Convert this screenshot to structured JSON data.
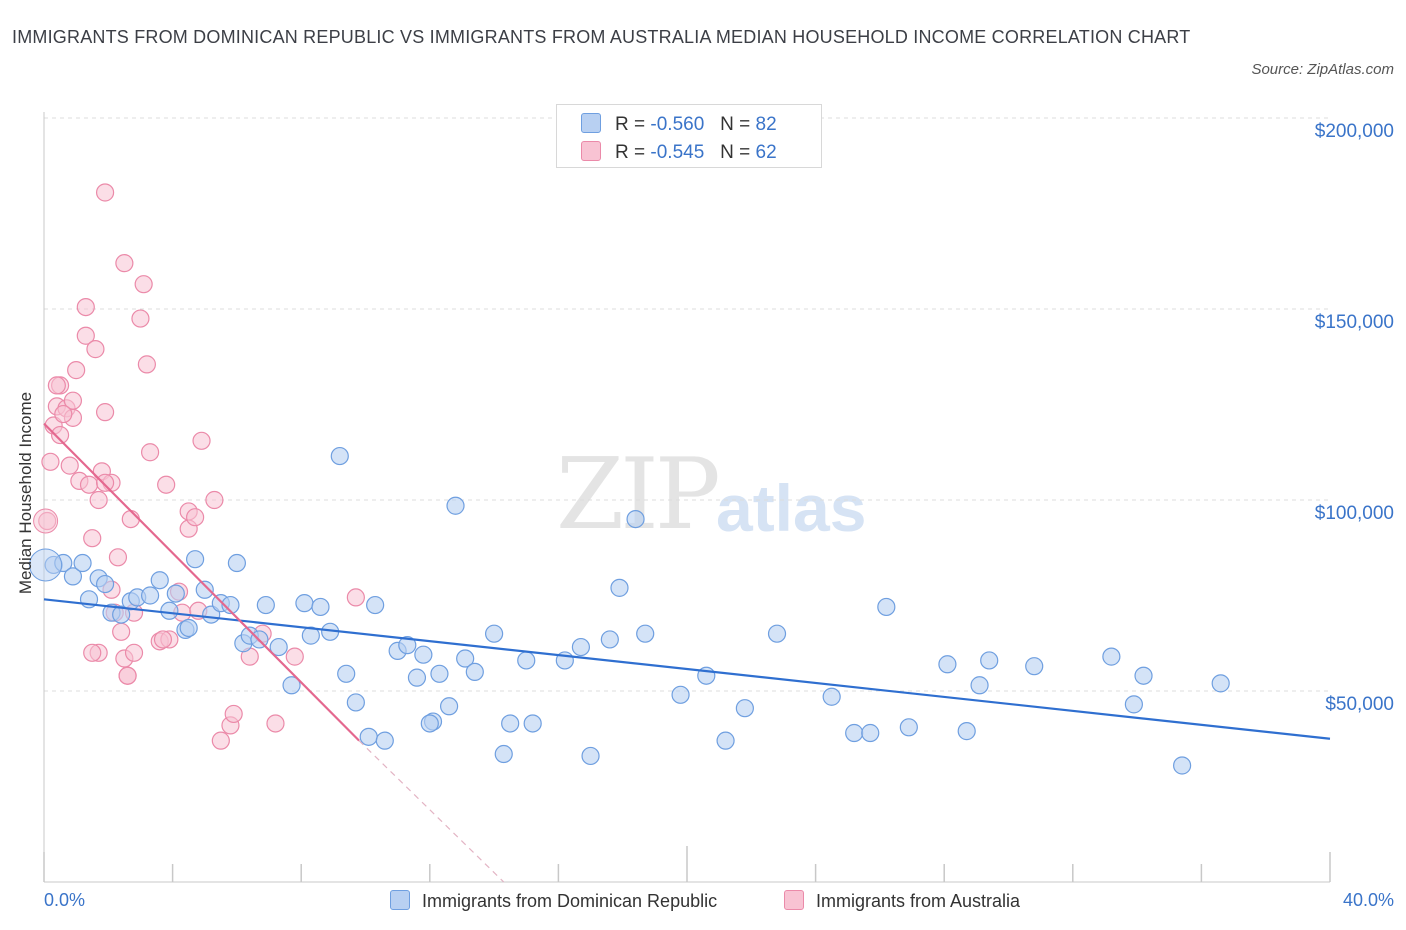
{
  "header": {
    "title": "IMMIGRANTS FROM DOMINICAN REPUBLIC VS IMMIGRANTS FROM AUSTRALIA MEDIAN HOUSEHOLD INCOME CORRELATION CHART",
    "source": "Source: ZipAtlas.com"
  },
  "watermark": {
    "zip": "ZIP",
    "atlas": "atlas"
  },
  "legend": {
    "series1": {
      "r_label": "R =",
      "r_value": "-0.560",
      "n_label": "N =",
      "n_value": "82"
    },
    "series2": {
      "r_label": "R =",
      "r_value": "-0.545",
      "n_label": "N =",
      "n_value": "62"
    }
  },
  "colors": {
    "blue_fill": "#b8d0f2",
    "blue_stroke": "#6f9fe0",
    "blue_line": "#2f6fd0",
    "pink_fill": "#f8c3d3",
    "pink_stroke": "#eb8aa9",
    "pink_line": "#e4688f",
    "grid": "#dcdcdc",
    "tick_text": "#3a74c9"
  },
  "chart_data": {
    "type": "scatter",
    "title": "IMMIGRANTS FROM DOMINICAN REPUBLIC VS IMMIGRANTS FROM AUSTRALIA MEDIAN HOUSEHOLD INCOME CORRELATION CHART",
    "xlabel": "",
    "ylabel": "Median Household Income",
    "xlim": [
      0,
      40
    ],
    "ylim": [
      0,
      200000
    ],
    "x_tick_labels": [
      "0.0%",
      "40.0%"
    ],
    "y_tick_labels": [
      "$50,000",
      "$100,000",
      "$150,000",
      "$200,000"
    ],
    "y_tick_values": [
      50000,
      100000,
      150000,
      200000
    ],
    "grid": "horizontal dashed",
    "legend_position": "bottom",
    "series": [
      {
        "name": "Immigrants from Dominican Republic",
        "color": "#6f9fe0",
        "trend": {
          "x": [
            0,
            40
          ],
          "y": [
            74000,
            37500
          ]
        },
        "points": [
          [
            0.3,
            83000
          ],
          [
            0.6,
            83500
          ],
          [
            0.9,
            80000
          ],
          [
            1.2,
            83500
          ],
          [
            1.4,
            74000
          ],
          [
            1.7,
            79500
          ],
          [
            1.9,
            78000
          ],
          [
            2.1,
            70500
          ],
          [
            2.4,
            70000
          ],
          [
            2.7,
            73500
          ],
          [
            2.9,
            74500
          ],
          [
            3.3,
            75000
          ],
          [
            3.6,
            79000
          ],
          [
            3.9,
            71000
          ],
          [
            4.1,
            75500
          ],
          [
            4.4,
            66000
          ],
          [
            4.7,
            84500
          ],
          [
            5.0,
            76500
          ],
          [
            5.2,
            70000
          ],
          [
            5.5,
            73000
          ],
          [
            5.8,
            72500
          ],
          [
            6.0,
            83500
          ],
          [
            6.2,
            62500
          ],
          [
            6.4,
            64500
          ],
          [
            6.7,
            63500
          ],
          [
            6.9,
            72500
          ],
          [
            7.3,
            61500
          ],
          [
            7.7,
            51500
          ],
          [
            8.1,
            73000
          ],
          [
            8.3,
            64500
          ],
          [
            8.6,
            72000
          ],
          [
            8.9,
            65500
          ],
          [
            9.2,
            111500
          ],
          [
            9.4,
            54500
          ],
          [
            9.7,
            47000
          ],
          [
            10.1,
            38000
          ],
          [
            10.3,
            72500
          ],
          [
            10.6,
            37000
          ],
          [
            11.0,
            60500
          ],
          [
            11.3,
            62000
          ],
          [
            11.6,
            53500
          ],
          [
            11.8,
            59500
          ],
          [
            12.1,
            42000
          ],
          [
            12.3,
            54500
          ],
          [
            12.6,
            46000
          ],
          [
            12.8,
            98500
          ],
          [
            13.1,
            58500
          ],
          [
            13.4,
            55000
          ],
          [
            14.0,
            65000
          ],
          [
            14.5,
            41500
          ],
          [
            14.3,
            33500
          ],
          [
            15.0,
            58000
          ],
          [
            15.2,
            41500
          ],
          [
            16.2,
            58000
          ],
          [
            16.7,
            61500
          ],
          [
            17.0,
            33000
          ],
          [
            17.6,
            63500
          ],
          [
            17.9,
            77000
          ],
          [
            18.4,
            95000
          ],
          [
            18.7,
            65000
          ],
          [
            19.8,
            49000
          ],
          [
            20.6,
            54000
          ],
          [
            21.2,
            37000
          ],
          [
            21.8,
            45500
          ],
          [
            22.8,
            65000
          ],
          [
            24.5,
            48500
          ],
          [
            25.2,
            39000
          ],
          [
            25.7,
            39000
          ],
          [
            26.2,
            72000
          ],
          [
            26.9,
            40500
          ],
          [
            28.1,
            57000
          ],
          [
            28.7,
            39500
          ],
          [
            29.1,
            51500
          ],
          [
            29.4,
            58000
          ],
          [
            30.8,
            56500
          ],
          [
            33.2,
            59000
          ],
          [
            33.9,
            46500
          ],
          [
            34.2,
            54000
          ],
          [
            35.4,
            30500
          ],
          [
            36.6,
            52000
          ],
          [
            4.5,
            66500
          ],
          [
            12.0,
            41500
          ]
        ]
      },
      {
        "name": "Immigrants from Australia",
        "color": "#eb8aa9",
        "trend": {
          "x": [
            0,
            9.8
          ],
          "y": [
            120000,
            37000
          ]
        },
        "trend_extension": {
          "x": [
            9.8,
            14.3
          ],
          "y": [
            37000,
            0
          ]
        },
        "points": [
          [
            0.1,
            94500
          ],
          [
            0.2,
            110000
          ],
          [
            0.3,
            119500
          ],
          [
            0.4,
            124500
          ],
          [
            0.5,
            117000
          ],
          [
            0.5,
            130000
          ],
          [
            0.7,
            124000
          ],
          [
            0.8,
            109000
          ],
          [
            0.9,
            126000
          ],
          [
            0.9,
            121500
          ],
          [
            1.0,
            134000
          ],
          [
            1.1,
            105000
          ],
          [
            1.3,
            143000
          ],
          [
            1.3,
            150500
          ],
          [
            1.4,
            104000
          ],
          [
            1.5,
            90000
          ],
          [
            1.6,
            139500
          ],
          [
            1.7,
            60000
          ],
          [
            1.7,
            100000
          ],
          [
            1.8,
            107500
          ],
          [
            1.9,
            180500
          ],
          [
            1.9,
            123000
          ],
          [
            2.1,
            76500
          ],
          [
            2.1,
            104500
          ],
          [
            2.2,
            70500
          ],
          [
            2.3,
            85000
          ],
          [
            2.4,
            65500
          ],
          [
            2.5,
            162000
          ],
          [
            2.5,
            58500
          ],
          [
            2.6,
            54000
          ],
          [
            2.7,
            95000
          ],
          [
            2.8,
            70500
          ],
          [
            2.8,
            60000
          ],
          [
            3.0,
            147500
          ],
          [
            3.1,
            156500
          ],
          [
            3.2,
            135500
          ],
          [
            3.3,
            112500
          ],
          [
            3.6,
            63000
          ],
          [
            3.8,
            104000
          ],
          [
            3.9,
            63500
          ],
          [
            4.2,
            76000
          ],
          [
            4.3,
            70500
          ],
          [
            4.5,
            92500
          ],
          [
            4.5,
            97000
          ],
          [
            4.7,
            95500
          ],
          [
            4.8,
            71000
          ],
          [
            4.9,
            115500
          ],
          [
            5.3,
            100000
          ],
          [
            5.5,
            37000
          ],
          [
            5.8,
            41000
          ],
          [
            5.9,
            44000
          ],
          [
            6.4,
            59000
          ],
          [
            6.8,
            65000
          ],
          [
            7.2,
            41500
          ],
          [
            7.8,
            59000
          ],
          [
            9.7,
            74500
          ],
          [
            2.6,
            54000
          ],
          [
            1.9,
            104500
          ],
          [
            0.6,
            122500
          ],
          [
            3.7,
            63500
          ],
          [
            0.4,
            130000
          ],
          [
            1.5,
            60000
          ]
        ]
      }
    ]
  }
}
